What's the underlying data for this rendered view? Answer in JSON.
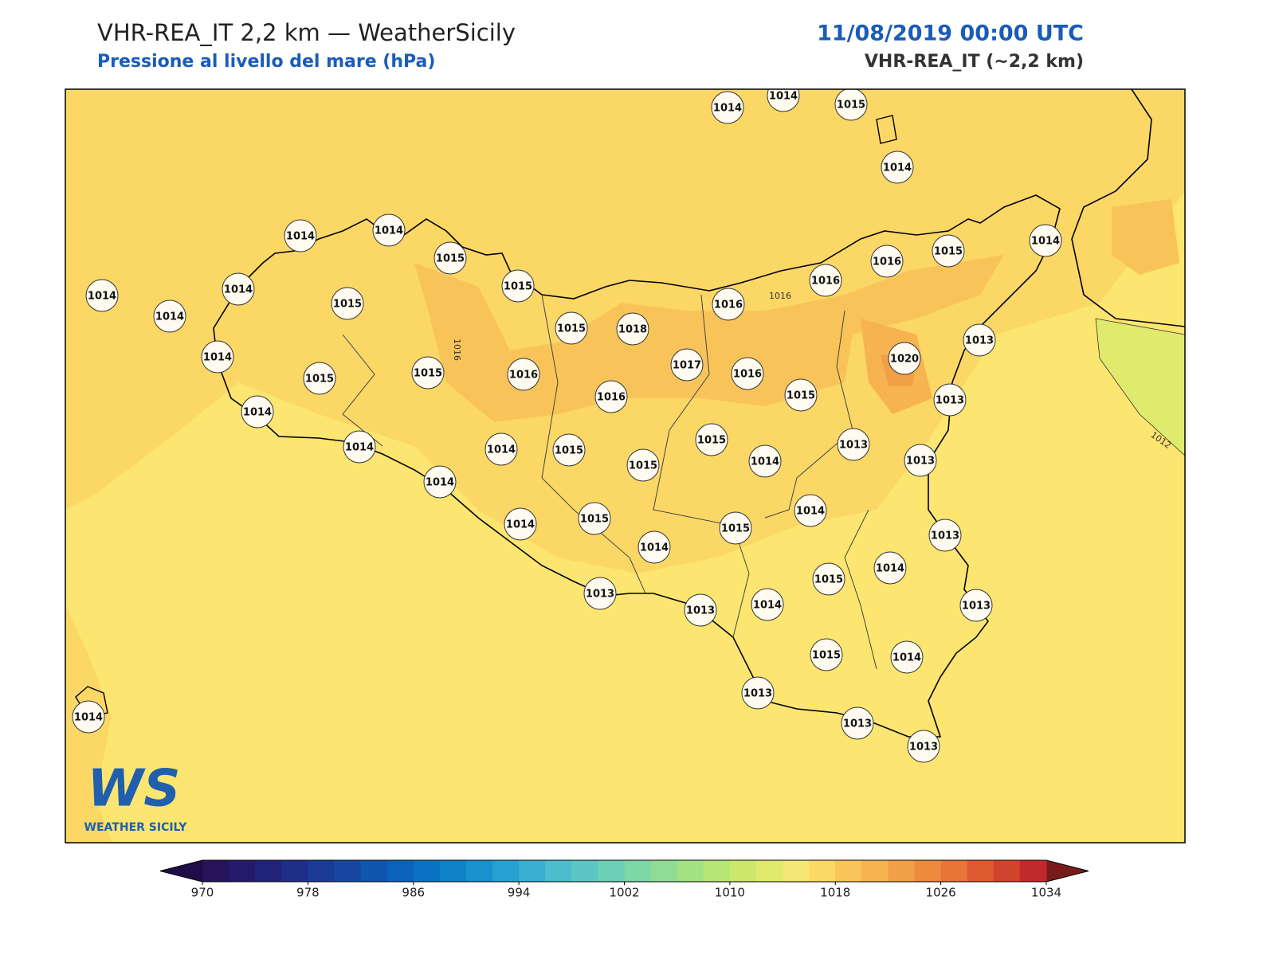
{
  "header": {
    "title": "VHR-REA_IT 2,2 km — WeatherSicily",
    "subtitle": "Pressione al livello del mare (hPa)",
    "datetime": "11/08/2019 00:00 UTC",
    "model": "VHR-REA_IT (~2,2 km)"
  },
  "stations": [
    1014,
    1014,
    1015,
    1014,
    1014,
    1014,
    1015,
    1015,
    1014,
    1014,
    1014,
    1015,
    1015,
    1014,
    1016,
    1016,
    1016,
    1015,
    1018,
    1014,
    1017,
    1013,
    1020,
    1015,
    1015,
    1016,
    1016,
    1016,
    1015,
    1013,
    1014,
    1015,
    1013,
    1014,
    1014,
    1015,
    1015,
    1014,
    1013,
    1014,
    1014,
    1014,
    1015,
    1015,
    1013,
    1014,
    1014,
    1015,
    1013,
    1013,
    1014,
    1013,
    1015,
    1014,
    1013,
    1014,
    1013,
    1013
  ],
  "contour_labels": [
    "1016",
    "1016",
    "1012"
  ],
  "logo": {
    "mark": "WS",
    "text": "WEATHER SICILY"
  },
  "colorbar": {
    "ticks": [
      970,
      978,
      986,
      994,
      1002,
      1010,
      1018,
      1026,
      1034
    ],
    "colors": [
      "#25145a",
      "#241a6a",
      "#22237a",
      "#1f2e88",
      "#1b3a96",
      "#1647a3",
      "#1055ae",
      "#0b63b9",
      "#0a72c2",
      "#0f81c9",
      "#1a90ce",
      "#29a0d2",
      "#3aafd2",
      "#4cbcce",
      "#5cc6c4",
      "#6ccfb7",
      "#7dd7a6",
      "#8fdd94",
      "#a2e283",
      "#b7e675",
      "#cce86c",
      "#e0ea6c",
      "#f3e775",
      "#fcd966",
      "#f9c45a",
      "#f6b350",
      "#f2a046",
      "#ee8a3e",
      "#e87437",
      "#de5a31",
      "#d0432d",
      "#c02a2a"
    ],
    "extend_colors": [
      "#1f0c48",
      "#7a1b1b"
    ]
  }
}
